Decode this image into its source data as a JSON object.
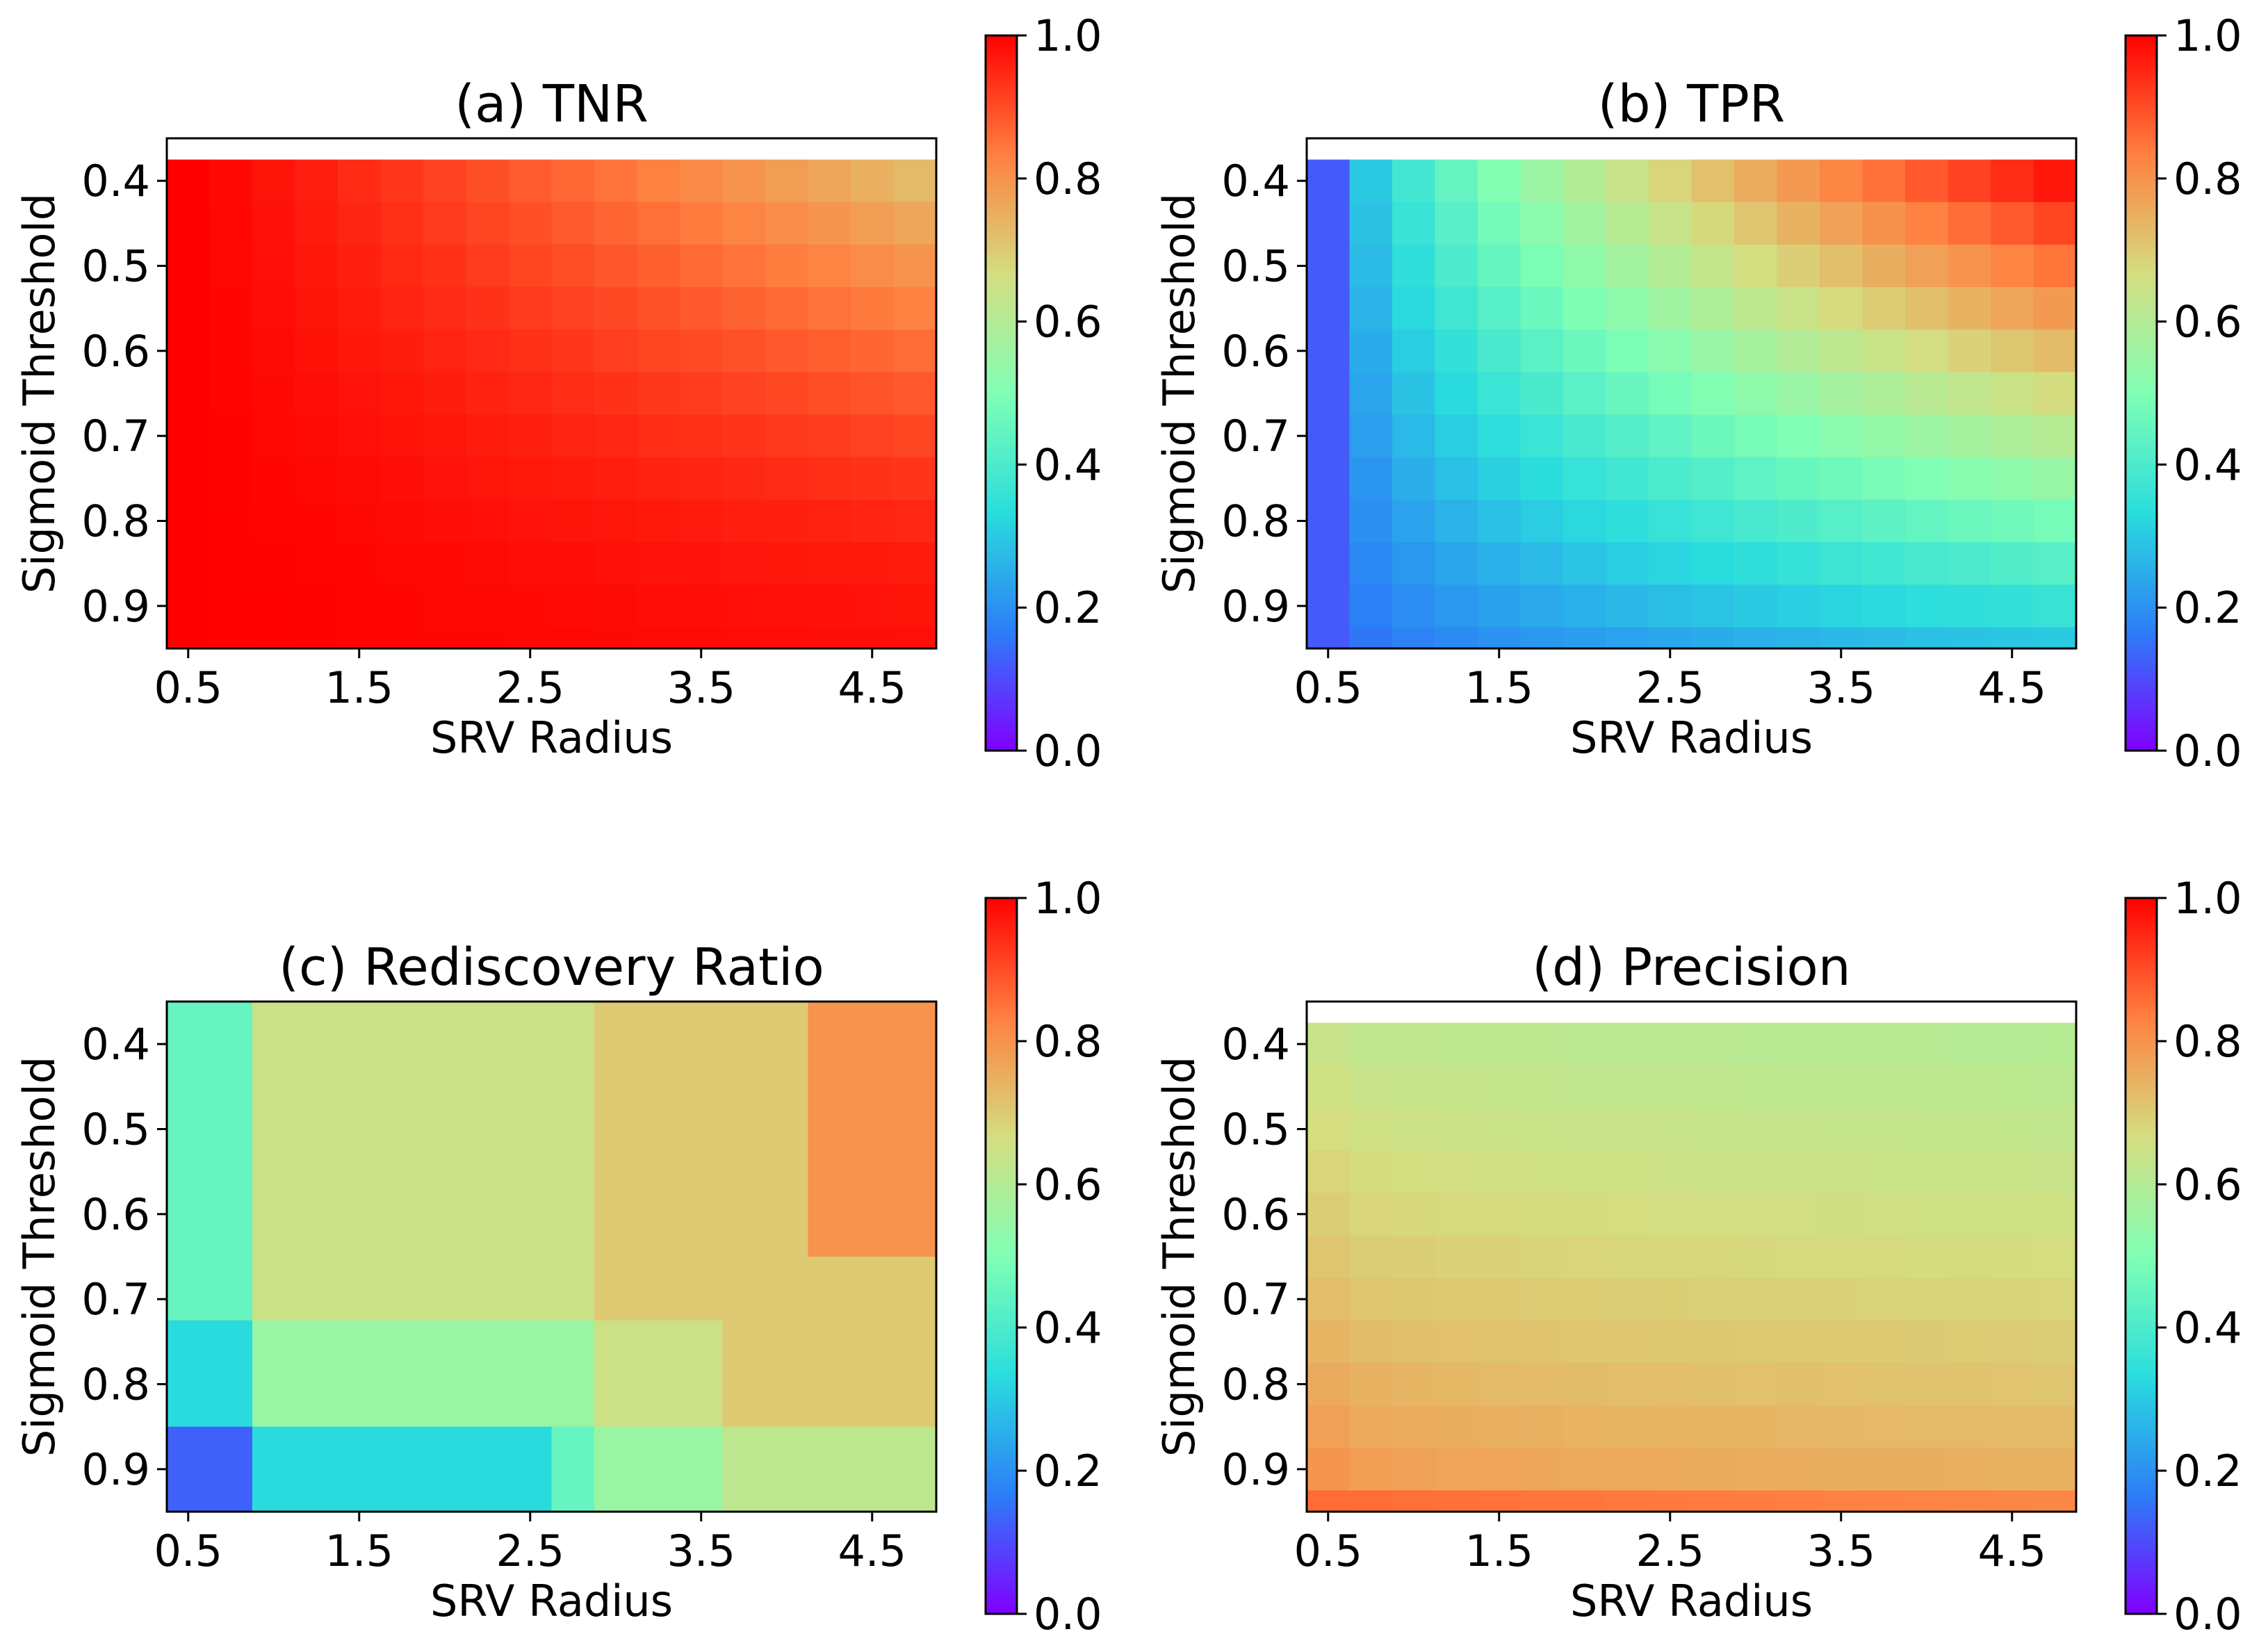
{
  "colormap": {
    "name": "rainbow",
    "stops": [
      "#8000ff",
      "#2c7ef7",
      "#2adddd",
      "#80ffb4",
      "#d4dd80",
      "#ff8040",
      "#ff0000"
    ]
  },
  "chart_data": [
    {
      "type": "heatmap",
      "title": "(a) TNR",
      "xlabel": "SRV Radius",
      "ylabel": "Sigmoid Threshold",
      "x_ticks": [
        "0.5",
        "1.5",
        "2.5",
        "3.5",
        "4.5"
      ],
      "y_ticks": [
        "0.4",
        "0.5",
        "0.6",
        "0.7",
        "0.8",
        "0.9"
      ],
      "x_range": [
        0.375,
        4.875
      ],
      "y_range": [
        0.35,
        0.95
      ],
      "x_cells": [
        0.5,
        0.75,
        1.0,
        1.25,
        1.5,
        1.75,
        2.0,
        2.25,
        2.5,
        2.75,
        3.0,
        3.25,
        3.5,
        3.75,
        4.0,
        4.25,
        4.5,
        4.75
      ],
      "y_cells": [
        0.4,
        0.45,
        0.5,
        0.55,
        0.6,
        0.65,
        0.7,
        0.75,
        0.8,
        0.85,
        0.9,
        0.95
      ],
      "generator": {
        "kind": "tnr"
      },
      "value_range": [
        0.0,
        1.0
      ],
      "colorbar_ticks": [
        "0.0",
        "0.2",
        "0.4",
        "0.6",
        "0.8",
        "1.0"
      ]
    },
    {
      "type": "heatmap",
      "title": "(b) TPR",
      "xlabel": "SRV Radius",
      "ylabel": "Sigmoid Threshold",
      "x_ticks": [
        "0.5",
        "1.5",
        "2.5",
        "3.5",
        "4.5"
      ],
      "y_ticks": [
        "0.4",
        "0.5",
        "0.6",
        "0.7",
        "0.8",
        "0.9"
      ],
      "x_range": [
        0.375,
        4.875
      ],
      "y_range": [
        0.35,
        0.95
      ],
      "x_cells": [
        0.5,
        0.75,
        1.0,
        1.25,
        1.5,
        1.75,
        2.0,
        2.25,
        2.5,
        2.75,
        3.0,
        3.25,
        3.5,
        3.75,
        4.0,
        4.25,
        4.5,
        4.75
      ],
      "y_cells": [
        0.4,
        0.45,
        0.5,
        0.55,
        0.6,
        0.65,
        0.7,
        0.75,
        0.8,
        0.85,
        0.9,
        0.95
      ],
      "generator": {
        "kind": "tpr"
      },
      "value_range": [
        0.0,
        1.0
      ],
      "colorbar_ticks": [
        "0.0",
        "0.2",
        "0.4",
        "0.6",
        "0.8",
        "1.0"
      ]
    },
    {
      "type": "heatmap",
      "title": "(c) Rediscovery Ratio",
      "xlabel": "SRV Radius",
      "ylabel": "Sigmoid Threshold",
      "x_ticks": [
        "0.5",
        "1.5",
        "2.5",
        "3.5",
        "4.5"
      ],
      "y_ticks": [
        "0.4",
        "0.5",
        "0.6",
        "0.7",
        "0.8",
        "0.9"
      ],
      "x_range": [
        0.375,
        4.875
      ],
      "y_range": [
        0.35,
        0.95
      ],
      "regions": [
        {
          "x": [
            0.375,
            0.875
          ],
          "y": [
            0.35,
            0.725
          ],
          "value": 0.45
        },
        {
          "x": [
            0.375,
            0.875
          ],
          "y": [
            0.725,
            0.85
          ],
          "value": 0.33
        },
        {
          "x": [
            0.375,
            0.875
          ],
          "y": [
            0.85,
            0.95
          ],
          "value": 0.13
        },
        {
          "x": [
            0.875,
            2.875
          ],
          "y": [
            0.35,
            0.725
          ],
          "value": 0.65
        },
        {
          "x": [
            0.875,
            2.875
          ],
          "y": [
            0.725,
            0.85
          ],
          "value": 0.55
        },
        {
          "x": [
            0.875,
            2.625
          ],
          "y": [
            0.85,
            0.95
          ],
          "value": 0.33
        },
        {
          "x": [
            2.625,
            2.875
          ],
          "y": [
            0.85,
            0.95
          ],
          "value": 0.45
        },
        {
          "x": [
            2.875,
            4.125
          ],
          "y": [
            0.35,
            0.65
          ],
          "value": 0.7
        },
        {
          "x": [
            4.125,
            4.875
          ],
          "y": [
            0.35,
            0.65
          ],
          "value": 0.8
        },
        {
          "x": [
            2.875,
            4.875
          ],
          "y": [
            0.65,
            0.725
          ],
          "value": 0.7
        },
        {
          "x": [
            2.875,
            3.625
          ],
          "y": [
            0.725,
            0.85
          ],
          "value": 0.65
        },
        {
          "x": [
            3.625,
            4.875
          ],
          "y": [
            0.725,
            0.85
          ],
          "value": 0.7
        },
        {
          "x": [
            2.875,
            3.625
          ],
          "y": [
            0.85,
            0.95
          ],
          "value": 0.55
        },
        {
          "x": [
            3.625,
            4.875
          ],
          "y": [
            0.85,
            0.95
          ],
          "value": 0.62
        }
      ],
      "value_range": [
        0.0,
        1.0
      ],
      "colorbar_ticks": [
        "0.0",
        "0.2",
        "0.4",
        "0.6",
        "0.8",
        "1.0"
      ]
    },
    {
      "type": "heatmap",
      "title": "(d) Precision",
      "xlabel": "SRV Radius",
      "ylabel": "Sigmoid Threshold",
      "x_ticks": [
        "0.5",
        "1.5",
        "2.5",
        "3.5",
        "4.5"
      ],
      "y_ticks": [
        "0.4",
        "0.5",
        "0.6",
        "0.7",
        "0.8",
        "0.9"
      ],
      "x_range": [
        0.375,
        4.875
      ],
      "y_range": [
        0.35,
        0.95
      ],
      "x_cells": [
        0.5,
        0.75,
        1.0,
        1.25,
        1.5,
        1.75,
        2.0,
        2.25,
        2.5,
        2.75,
        3.0,
        3.25,
        3.5,
        3.75,
        4.0,
        4.25,
        4.5,
        4.75
      ],
      "y_cells": [
        0.4,
        0.45,
        0.5,
        0.55,
        0.6,
        0.65,
        0.7,
        0.75,
        0.8,
        0.85,
        0.9,
        0.95
      ],
      "generator": {
        "kind": "precision"
      },
      "value_range": [
        0.0,
        1.0
      ],
      "colorbar_ticks": [
        "0.0",
        "0.2",
        "0.4",
        "0.6",
        "0.8",
        "1.0"
      ]
    }
  ]
}
